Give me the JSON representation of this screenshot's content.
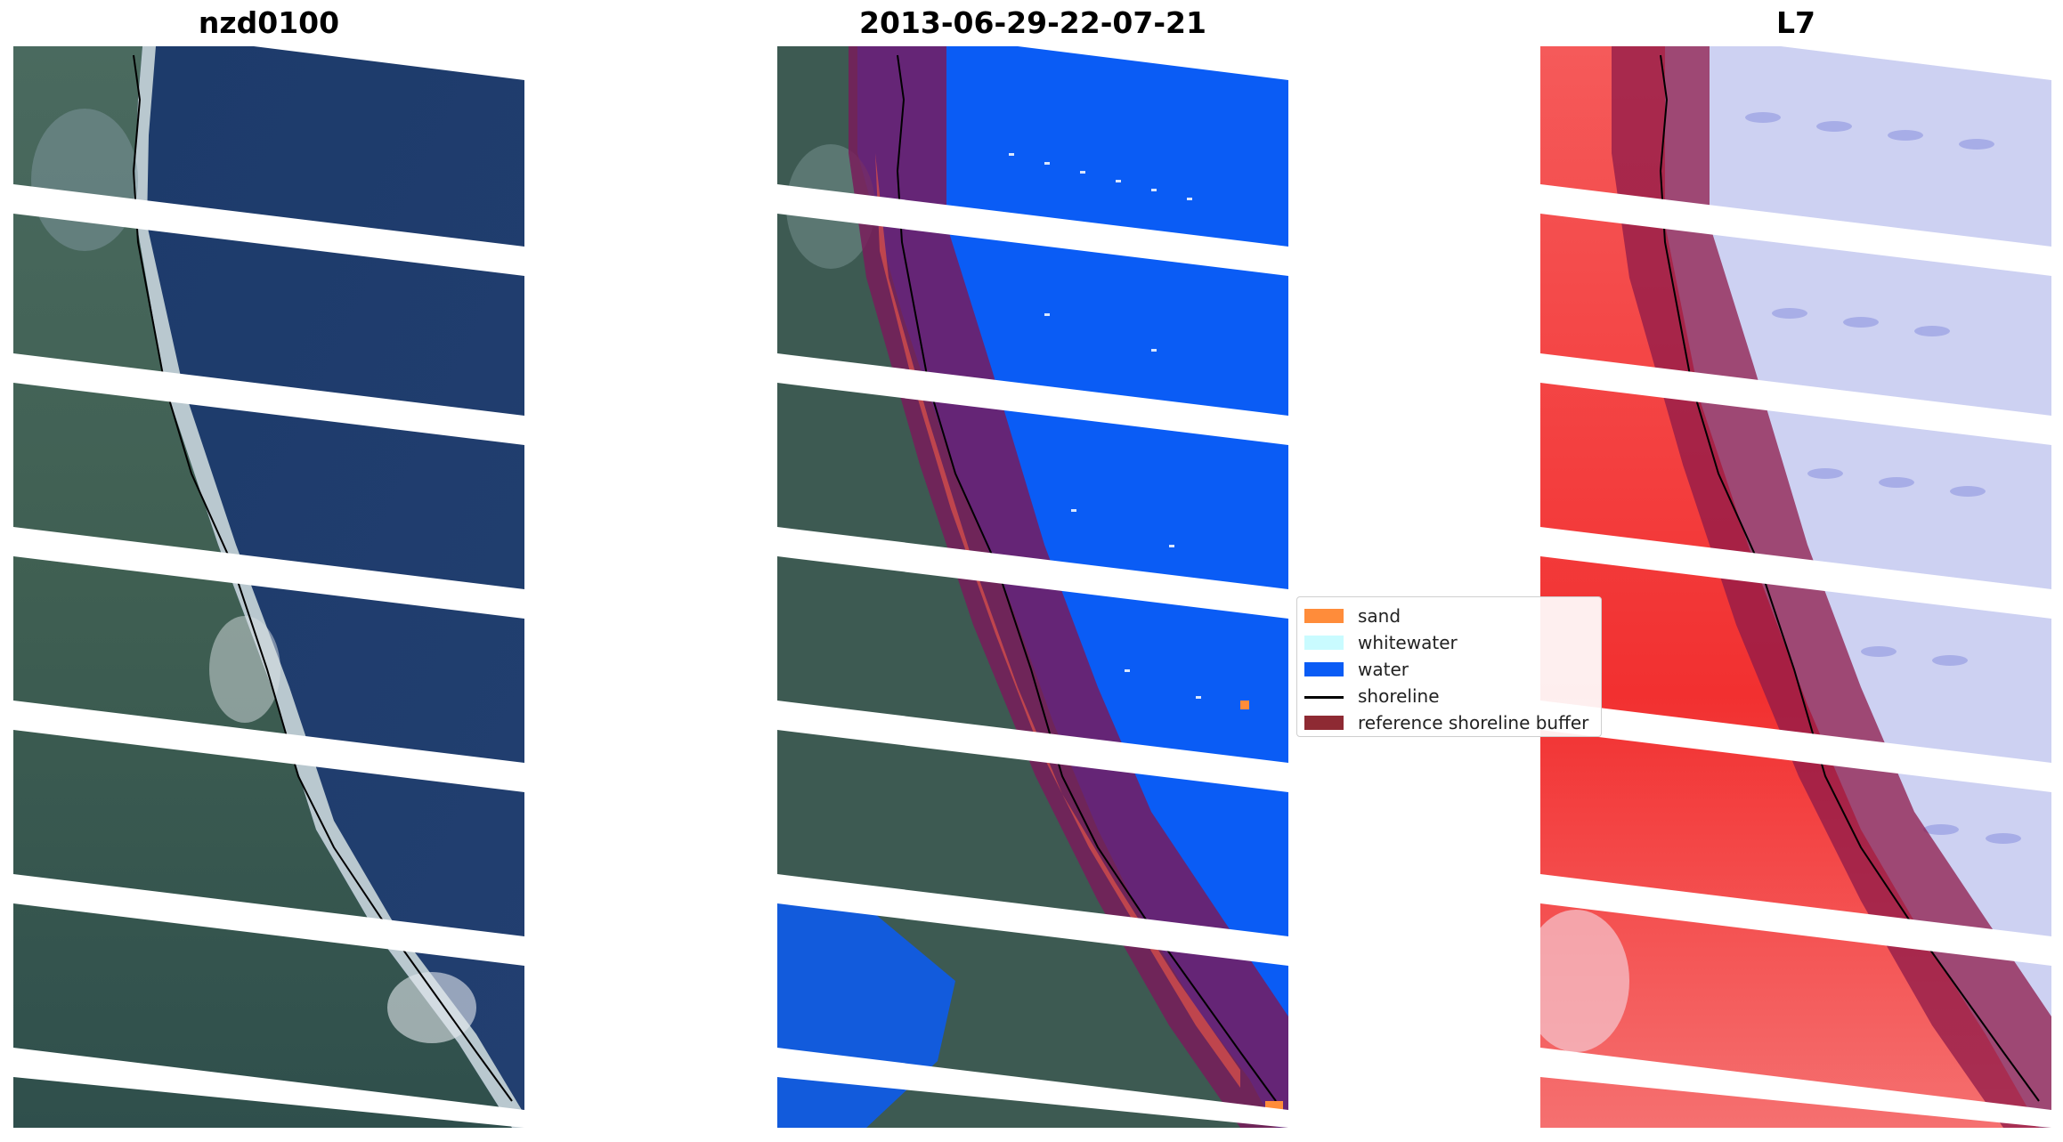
{
  "panels": [
    {
      "title": "nzd0100",
      "kind": "rgb"
    },
    {
      "title": "2013-06-29-22-07-21",
      "kind": "classified"
    },
    {
      "title": "L7",
      "kind": "index"
    }
  ],
  "legend": {
    "items": [
      {
        "label": "sand",
        "color": "#ff8c3a",
        "kind": "patch"
      },
      {
        "label": "whitewater",
        "color": "#c9fbff",
        "kind": "patch"
      },
      {
        "label": "water",
        "color": "#0a5cf5",
        "kind": "patch"
      },
      {
        "label": "shoreline",
        "color": "#000000",
        "kind": "line"
      },
      {
        "label": "reference shoreline buffer",
        "color": "#8e2a33",
        "kind": "patch"
      }
    ]
  },
  "colors": {
    "ocean_rgb": "#1f3e6e",
    "land_rgb": "#3e5a55",
    "water_class": "#0a5cf5",
    "index_land": "#f23a3a",
    "index_water": "#c9cdf2",
    "buffer": "#7a1a5a"
  }
}
